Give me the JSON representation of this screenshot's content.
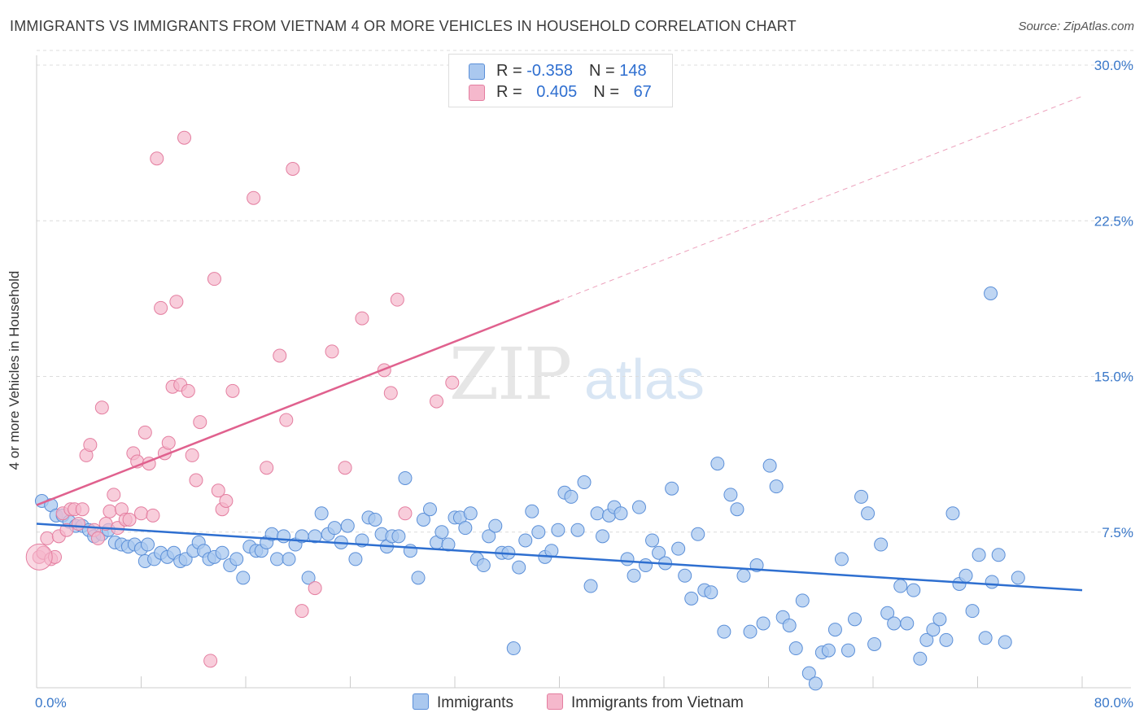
{
  "title": "IMMIGRANTS VS IMMIGRANTS FROM VIETNAM 4 OR MORE VEHICLES IN HOUSEHOLD CORRELATION CHART",
  "source": "Source: ZipAtlas.com",
  "watermark": {
    "zip": "ZIP",
    "atlas": "atlas"
  },
  "legend_box": {
    "row1": {
      "r_label": "R = ",
      "r_value": "-0.358",
      "n_label": "N = ",
      "n_value": "148"
    },
    "row2": {
      "r_label": "R = ",
      "r_value": "0.405",
      "n_label": "N = ",
      "n_value": "67"
    }
  },
  "bottom_legend": {
    "immigrants": "Immigrants",
    "vietnam": "Immigrants from Vietnam"
  },
  "colors": {
    "blue_fill": "#aac8ef",
    "blue_stroke": "#5b8fd8",
    "blue_line": "#2e6fd0",
    "pink_fill": "#f5b8cc",
    "pink_stroke": "#e47ea0",
    "pink_line": "#e0618e",
    "grid": "#dcdcdc",
    "axis_text": "#3a78c9"
  },
  "chart_data": {
    "type": "scatter",
    "title": "IMMIGRANTS VS IMMIGRANTS FROM VIETNAM 4 OR MORE VEHICLES IN HOUSEHOLD CORRELATION CHART",
    "xlabel": "",
    "ylabel": "4 or more Vehicles in Household",
    "xlim": [
      0,
      80
    ],
    "ylim": [
      0,
      30
    ],
    "x_tick_labels": [
      "0.0%",
      "80.0%"
    ],
    "y_ticks": [
      7.5,
      15.0,
      22.5,
      30.0
    ],
    "y_tick_labels": [
      "7.5%",
      "15.0%",
      "22.5%",
      "30.0%"
    ],
    "grid": true,
    "series": [
      {
        "name": "Immigrants",
        "color": "#aac8ef",
        "trend": {
          "x0": 0,
          "y0": 7.9,
          "x1": 80,
          "y1": 4.7,
          "dashed_from": null
        },
        "points": [
          [
            0.4,
            9.0
          ],
          [
            1.1,
            8.8
          ],
          [
            1.5,
            8.3
          ],
          [
            2.0,
            8.3
          ],
          [
            2.5,
            8.0
          ],
          [
            3.0,
            7.8
          ],
          [
            3.5,
            7.8
          ],
          [
            4.0,
            7.6
          ],
          [
            4.4,
            7.3
          ],
          [
            5.0,
            7.4
          ],
          [
            5.5,
            7.6
          ],
          [
            6.0,
            7.0
          ],
          [
            6.5,
            6.9
          ],
          [
            7.0,
            6.8
          ],
          [
            7.5,
            6.9
          ],
          [
            8.0,
            6.7
          ],
          [
            8.5,
            6.9
          ],
          [
            8.3,
            6.1
          ],
          [
            9.0,
            6.2
          ],
          [
            9.5,
            6.5
          ],
          [
            10.0,
            6.3
          ],
          [
            10.5,
            6.5
          ],
          [
            11.0,
            6.1
          ],
          [
            11.4,
            6.2
          ],
          [
            12.0,
            6.6
          ],
          [
            12.4,
            7.0
          ],
          [
            12.8,
            6.6
          ],
          [
            13.2,
            6.2
          ],
          [
            13.6,
            6.3
          ],
          [
            14.2,
            6.5
          ],
          [
            14.8,
            5.9
          ],
          [
            15.3,
            6.2
          ],
          [
            15.8,
            5.3
          ],
          [
            16.3,
            6.8
          ],
          [
            16.8,
            6.6
          ],
          [
            17.2,
            6.6
          ],
          [
            17.6,
            7.0
          ],
          [
            18.0,
            7.4
          ],
          [
            18.4,
            6.2
          ],
          [
            18.9,
            7.3
          ],
          [
            19.3,
            6.2
          ],
          [
            19.8,
            6.9
          ],
          [
            20.3,
            7.3
          ],
          [
            20.8,
            5.3
          ],
          [
            21.3,
            7.3
          ],
          [
            21.8,
            8.4
          ],
          [
            22.3,
            7.4
          ],
          [
            22.8,
            7.7
          ],
          [
            23.3,
            7.0
          ],
          [
            23.8,
            7.8
          ],
          [
            24.4,
            6.2
          ],
          [
            24.9,
            7.1
          ],
          [
            25.4,
            8.2
          ],
          [
            25.9,
            8.1
          ],
          [
            26.4,
            7.4
          ],
          [
            26.8,
            6.8
          ],
          [
            27.2,
            7.3
          ],
          [
            27.7,
            7.3
          ],
          [
            28.2,
            10.1
          ],
          [
            28.6,
            6.6
          ],
          [
            29.2,
            5.3
          ],
          [
            29.6,
            8.1
          ],
          [
            30.1,
            8.6
          ],
          [
            30.6,
            7.0
          ],
          [
            31.0,
            7.5
          ],
          [
            31.5,
            6.9
          ],
          [
            32.0,
            8.2
          ],
          [
            32.4,
            8.2
          ],
          [
            32.8,
            7.7
          ],
          [
            33.2,
            8.4
          ],
          [
            33.7,
            6.2
          ],
          [
            34.2,
            5.9
          ],
          [
            34.6,
            7.3
          ],
          [
            35.1,
            7.8
          ],
          [
            35.6,
            6.5
          ],
          [
            36.1,
            6.5
          ],
          [
            36.5,
            1.9
          ],
          [
            36.9,
            5.8
          ],
          [
            37.4,
            7.1
          ],
          [
            37.9,
            8.5
          ],
          [
            38.4,
            7.5
          ],
          [
            38.9,
            6.3
          ],
          [
            39.4,
            6.6
          ],
          [
            39.9,
            7.6
          ],
          [
            40.4,
            9.4
          ],
          [
            40.9,
            9.2
          ],
          [
            41.4,
            7.6
          ],
          [
            41.9,
            9.9
          ],
          [
            42.4,
            4.9
          ],
          [
            42.9,
            8.4
          ],
          [
            43.3,
            7.3
          ],
          [
            43.8,
            8.3
          ],
          [
            44.2,
            8.7
          ],
          [
            44.7,
            8.4
          ],
          [
            45.2,
            6.2
          ],
          [
            45.7,
            5.4
          ],
          [
            46.1,
            8.7
          ],
          [
            46.6,
            5.9
          ],
          [
            47.1,
            7.1
          ],
          [
            47.6,
            6.5
          ],
          [
            48.1,
            6.0
          ],
          [
            48.6,
            9.6
          ],
          [
            49.1,
            6.7
          ],
          [
            49.6,
            5.4
          ],
          [
            50.1,
            4.3
          ],
          [
            50.6,
            7.4
          ],
          [
            51.1,
            4.7
          ],
          [
            51.6,
            4.6
          ],
          [
            52.1,
            10.8
          ],
          [
            52.6,
            2.7
          ],
          [
            53.1,
            9.3
          ],
          [
            53.6,
            8.6
          ],
          [
            54.1,
            5.4
          ],
          [
            54.6,
            2.7
          ],
          [
            55.1,
            5.9
          ],
          [
            55.6,
            3.1
          ],
          [
            56.1,
            10.7
          ],
          [
            56.6,
            9.7
          ],
          [
            57.1,
            3.4
          ],
          [
            57.6,
            3.0
          ],
          [
            58.1,
            1.9
          ],
          [
            58.6,
            4.2
          ],
          [
            59.1,
            0.7
          ],
          [
            59.6,
            0.2
          ],
          [
            60.1,
            1.7
          ],
          [
            60.6,
            1.8
          ],
          [
            61.1,
            2.8
          ],
          [
            61.6,
            6.2
          ],
          [
            62.1,
            1.8
          ],
          [
            62.6,
            3.3
          ],
          [
            63.1,
            9.2
          ],
          [
            63.6,
            8.4
          ],
          [
            64.1,
            2.1
          ],
          [
            64.6,
            6.9
          ],
          [
            65.1,
            3.6
          ],
          [
            65.6,
            3.1
          ],
          [
            66.1,
            4.9
          ],
          [
            66.6,
            3.1
          ],
          [
            67.1,
            4.7
          ],
          [
            67.6,
            1.4
          ],
          [
            68.1,
            2.3
          ],
          [
            68.6,
            2.8
          ],
          [
            69.1,
            3.3
          ],
          [
            69.6,
            2.3
          ],
          [
            70.1,
            8.4
          ],
          [
            70.6,
            5.0
          ],
          [
            71.1,
            5.4
          ],
          [
            71.6,
            3.7
          ],
          [
            72.1,
            6.4
          ],
          [
            72.6,
            2.4
          ],
          [
            73.1,
            5.1
          ],
          [
            73.6,
            6.4
          ],
          [
            74.1,
            2.2
          ],
          [
            75.1,
            5.3
          ],
          [
            73.0,
            19.0
          ]
        ]
      },
      {
        "name": "Immigrants from Vietnam",
        "color": "#f5b8cc",
        "trend": {
          "x0": 0,
          "y0": 8.8,
          "x1": 80,
          "y1": 28.5,
          "solid_until_x": 40
        },
        "points": [
          [
            0.2,
            6.3
          ],
          [
            0.5,
            6.5
          ],
          [
            0.8,
            7.2
          ],
          [
            1.1,
            6.2
          ],
          [
            1.4,
            6.3
          ],
          [
            1.7,
            7.3
          ],
          [
            2.0,
            8.4
          ],
          [
            2.3,
            7.6
          ],
          [
            2.6,
            8.6
          ],
          [
            2.9,
            8.6
          ],
          [
            3.2,
            7.9
          ],
          [
            3.5,
            8.6
          ],
          [
            3.8,
            11.2
          ],
          [
            4.1,
            11.7
          ],
          [
            4.4,
            7.6
          ],
          [
            4.7,
            7.2
          ],
          [
            5.0,
            13.5
          ],
          [
            5.3,
            7.9
          ],
          [
            5.6,
            8.5
          ],
          [
            5.9,
            9.3
          ],
          [
            6.2,
            7.7
          ],
          [
            6.5,
            8.6
          ],
          [
            6.8,
            8.1
          ],
          [
            7.1,
            8.1
          ],
          [
            7.4,
            11.3
          ],
          [
            7.7,
            10.9
          ],
          [
            8.0,
            8.4
          ],
          [
            8.3,
            12.3
          ],
          [
            8.6,
            10.8
          ],
          [
            8.9,
            8.3
          ],
          [
            9.2,
            25.5
          ],
          [
            9.5,
            18.3
          ],
          [
            9.8,
            11.3
          ],
          [
            10.1,
            11.8
          ],
          [
            10.4,
            14.5
          ],
          [
            10.7,
            18.6
          ],
          [
            11.0,
            14.6
          ],
          [
            11.3,
            26.5
          ],
          [
            11.6,
            14.3
          ],
          [
            11.9,
            11.2
          ],
          [
            12.2,
            10.0
          ],
          [
            12.5,
            12.8
          ],
          [
            13.3,
            1.3
          ],
          [
            13.6,
            19.7
          ],
          [
            13.9,
            9.5
          ],
          [
            14.2,
            8.6
          ],
          [
            14.5,
            9.0
          ],
          [
            15.0,
            14.3
          ],
          [
            16.6,
            23.6
          ],
          [
            17.6,
            10.6
          ],
          [
            18.6,
            16.0
          ],
          [
            19.1,
            12.9
          ],
          [
            19.6,
            25.0
          ],
          [
            20.3,
            3.7
          ],
          [
            21.3,
            4.8
          ],
          [
            22.6,
            16.2
          ],
          [
            23.6,
            10.6
          ],
          [
            24.9,
            17.8
          ],
          [
            26.6,
            15.3
          ],
          [
            27.1,
            14.2
          ],
          [
            27.6,
            18.7
          ],
          [
            28.2,
            8.4
          ],
          [
            30.6,
            13.8
          ],
          [
            31.8,
            14.7
          ]
        ]
      }
    ]
  }
}
